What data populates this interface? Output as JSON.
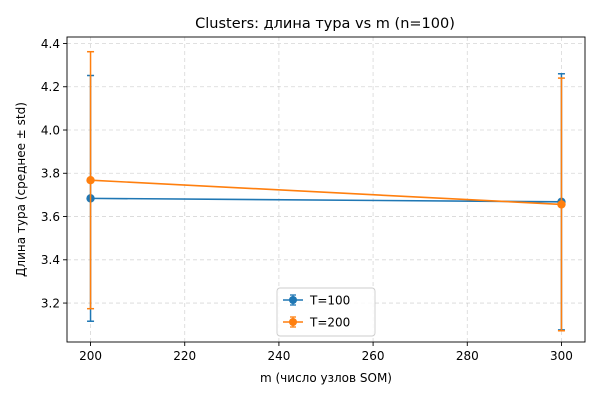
{
  "chart_data": {
    "type": "line",
    "title": "Clusters: длина тура vs m (n=100)",
    "xlabel": "m (число узлов SOM)",
    "ylabel": "Длина тура (среднее ± std)",
    "xlim": [
      195,
      305
    ],
    "ylim": [
      3.02,
      4.43
    ],
    "x_ticks": [
      200,
      220,
      240,
      260,
      280,
      300
    ],
    "y_ticks": [
      3.2,
      3.4,
      3.6,
      3.8,
      4.0,
      4.2,
      4.4
    ],
    "grid": true,
    "legend_position": "lower-center",
    "series": [
      {
        "name": "T=100",
        "color": "#1f77b4",
        "x": [
          200,
          300
        ],
        "y": [
          3.684,
          3.668
        ],
        "std": [
          0.568,
          0.592
        ]
      },
      {
        "name": "T=200",
        "color": "#ff7f0e",
        "x": [
          200,
          300
        ],
        "y": [
          3.768,
          3.656
        ],
        "std": [
          0.594,
          0.584
        ]
      }
    ]
  }
}
